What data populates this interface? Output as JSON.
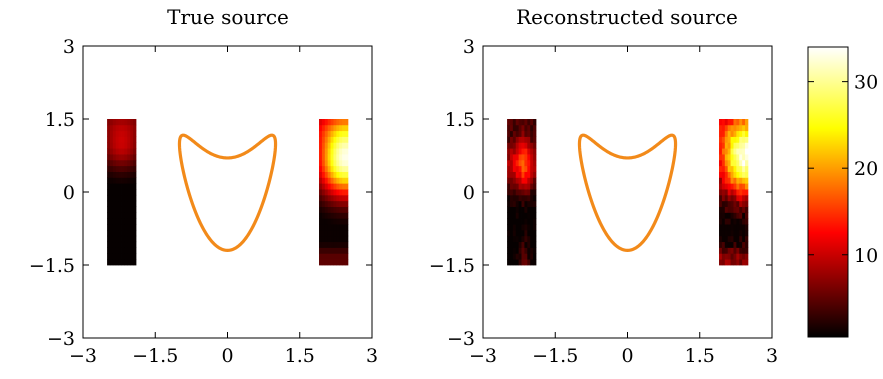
{
  "chart_data": [
    {
      "type": "heatmap",
      "title": "True source",
      "xlim": [
        -3,
        3
      ],
      "ylim": [
        -3,
        3
      ],
      "xticks": [
        "−3",
        "−1.5",
        "0",
        "1.5",
        "3"
      ],
      "yticks": [
        "−3",
        "−1.5",
        "0",
        "1.5",
        "3"
      ],
      "source_regions": [
        {
          "x": [
            -2.5,
            -1.9
          ],
          "y": [
            -1.5,
            1.5
          ],
          "peak_intensity": 10,
          "peak_at": [
            -2.2,
            1.0
          ]
        },
        {
          "x": [
            1.9,
            2.5
          ],
          "y": [
            -1.5,
            1.5
          ],
          "peak_intensity": 33,
          "peak_at": [
            2.45,
            0.7
          ]
        }
      ],
      "obstacle": {
        "shape": "kite",
        "color": "#f28a1a"
      }
    },
    {
      "type": "heatmap",
      "title": "Reconstructed source",
      "xlim": [
        -3,
        3
      ],
      "ylim": [
        -3,
        3
      ],
      "xticks": [
        "−3",
        "−1.5",
        "0",
        "1.5",
        "3"
      ],
      "yticks": [
        "−3",
        "−1.5",
        "0",
        "1.5",
        "3"
      ],
      "source_regions": [
        {
          "x": [
            -2.5,
            -1.9
          ],
          "y": [
            -1.5,
            1.5
          ],
          "peak_intensity": 12,
          "peak_at": [
            -2.2,
            0.6
          ]
        },
        {
          "x": [
            1.9,
            2.5
          ],
          "y": [
            -1.5,
            1.5
          ],
          "peak_intensity": 33,
          "peak_at": [
            2.45,
            0.7
          ]
        }
      ],
      "obstacle": {
        "shape": "kite",
        "color": "#f28a1a"
      }
    }
  ],
  "colorbar": {
    "colormap": "hot",
    "range": [
      0.5,
      34
    ],
    "ticks": [
      "10",
      "20",
      "30"
    ],
    "tick_values": [
      10,
      20,
      30
    ]
  }
}
